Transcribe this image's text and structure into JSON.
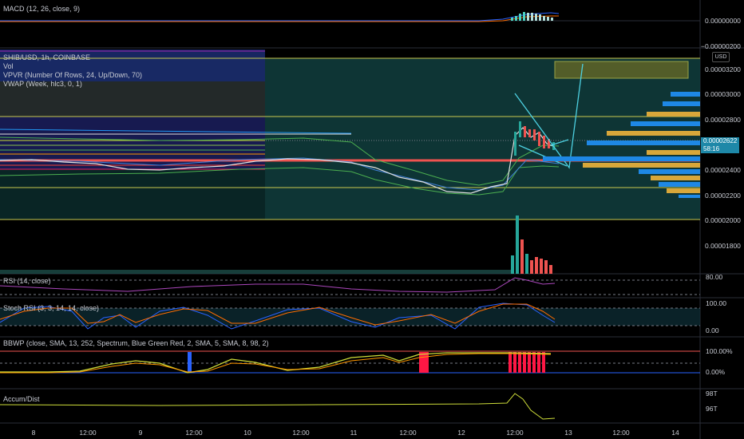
{
  "macd": {
    "title": "MACD (12, 26, close, 9)",
    "axis": [
      "0.00000000",
      "−0.00000200"
    ]
  },
  "main": {
    "title": "SHIB/USD, 1h, COINBASE",
    "overlays": [
      "Vol",
      "VPVR (Number Of Rows, 24, Up/Down, 70)",
      "VWAP (Week, hlc3, 0, 1)"
    ],
    "currency": "USD",
    "price_axis": [
      "0.00003200",
      "0.00003000",
      "0.00002800",
      "0.00002400",
      "0.00002200",
      "0.00002000",
      "0.00001800"
    ],
    "last_price": "0.00002622",
    "countdown": "58:16"
  },
  "rsi": {
    "title": "RSI (14, close)",
    "axis": [
      "80.00"
    ]
  },
  "stoch": {
    "title": "Stoch RSI (3, 3, 14, 14, close)",
    "axis": [
      "100.00",
      "0.00"
    ]
  },
  "bbwp": {
    "title": "BBWP (close, SMA, 13, 252, Spectrum, Blue Green Red, 2, SMA, 5, SMA, 8, 98, 2)",
    "axis": [
      "100.00%",
      "0.00%"
    ]
  },
  "accum": {
    "title": "Accum/Dist",
    "axis": [
      "98T",
      "96T"
    ]
  },
  "time_axis": [
    "8",
    "12:00",
    "9",
    "12:00",
    "10",
    "12:00",
    "11",
    "12:00",
    "12",
    "12:00",
    "13",
    "12:00",
    "14"
  ],
  "colors": {
    "up": "#26a69a",
    "down": "#ef5350",
    "panel_bg": "#000000",
    "zone": "#0f3b3b",
    "vwap": "#ef5350"
  },
  "chart_data": {
    "type": "line",
    "series": [
      {
        "values": [
          2.48e-05,
          2.485e-05,
          2.47e-05,
          2.42e-05,
          2.44e-05,
          2.47e-05,
          2.52e-05,
          2.51e-05,
          2.48e-05,
          2.42e-05,
          2.28e-05,
          2.22e-05,
          2.29e-05,
          2.36e-05,
          2.76e-05,
          2.78e-05,
          2.62e-05
        ]
      }
    ],
    "ylim": [
      1.7e-05,
      3.3e-05
    ]
  }
}
